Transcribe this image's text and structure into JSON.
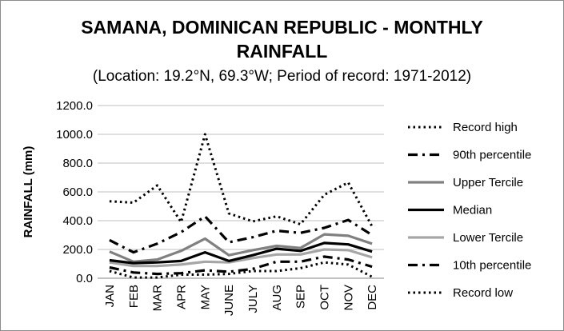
{
  "chart_data": {
    "type": "line",
    "title_line1": "SAMANA, DOMINICAN REPUBLIC - MONTHLY",
    "title_line2": "RAINFALL",
    "subtitle": "(Location: 19.2°N, 69.3°W; Period of record: 1971-2012)",
    "xlabel": "",
    "ylabel": "RAINFALL (mm)",
    "categories": [
      "JAN",
      "FEB",
      "MAR",
      "APR",
      "MAY",
      "JUNE",
      "JULY",
      "AUG",
      "SEP",
      "OCT",
      "NOV",
      "DEC"
    ],
    "ylim": [
      0,
      1200
    ],
    "yticks": [
      "0.0",
      "200.0",
      "400.0",
      "600.0",
      "800.0",
      "1000.0",
      "1200.0"
    ],
    "grid": true,
    "legend_position": "right",
    "series": [
      {
        "name": "Record high",
        "style": "dotted",
        "color": "#000000",
        "values": [
          535,
          525,
          645,
          390,
          1000,
          450,
          395,
          430,
          375,
          580,
          665,
          360
        ]
      },
      {
        "name": "90th percentile",
        "style": "dashdot",
        "color": "#000000",
        "values": [
          265,
          180,
          240,
          320,
          430,
          250,
          285,
          330,
          315,
          350,
          405,
          300
        ]
      },
      {
        "name": "Upper Tercile",
        "style": "solid",
        "color": "#808080",
        "values": [
          185,
          115,
          130,
          190,
          275,
          160,
          195,
          225,
          210,
          305,
          295,
          240
        ]
      },
      {
        "name": "Median",
        "style": "solid-thick",
        "color": "#000000",
        "values": [
          125,
          105,
          110,
          120,
          180,
          120,
          160,
          205,
          190,
          245,
          235,
          185
        ]
      },
      {
        "name": "Lower Tercile",
        "style": "solid",
        "color": "#a6a6a6",
        "values": [
          110,
          85,
          85,
          95,
          115,
          110,
          140,
          165,
          165,
          200,
          195,
          145
        ]
      },
      {
        "name": "10th percentile",
        "style": "dashdot",
        "color": "#000000",
        "values": [
          75,
          40,
          30,
          35,
          55,
          45,
          65,
          115,
          115,
          150,
          130,
          80
        ]
      },
      {
        "name": "Record low",
        "style": "dotted",
        "color": "#000000",
        "values": [
          50,
          5,
          5,
          25,
          25,
          30,
          50,
          50,
          70,
          110,
          95,
          10
        ]
      }
    ]
  }
}
